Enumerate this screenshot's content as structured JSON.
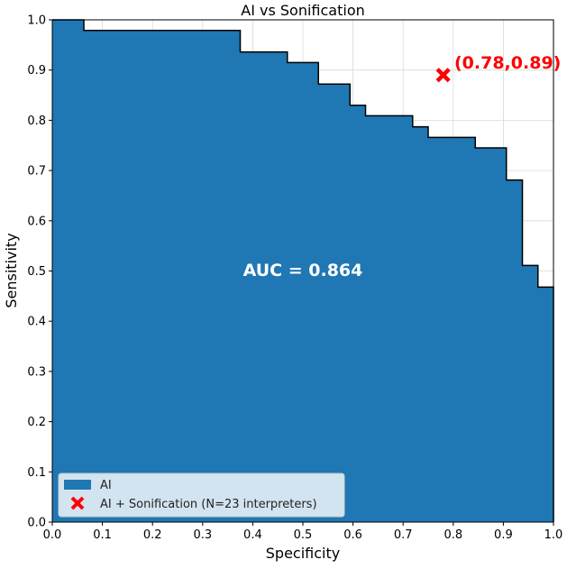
{
  "chart_data": {
    "type": "area",
    "title": "AI vs Sonification",
    "xlabel": "Specificity",
    "ylabel": "Sensitivity",
    "xlim": [
      0.0,
      1.0
    ],
    "ylim": [
      0.0,
      1.0
    ],
    "xticks": [
      "0.0",
      "0.1",
      "0.2",
      "0.3",
      "0.4",
      "0.5",
      "0.6",
      "0.7",
      "0.8",
      "0.9",
      "1.0"
    ],
    "yticks": [
      "0.0",
      "0.1",
      "0.2",
      "0.3",
      "0.4",
      "0.5",
      "0.6",
      "0.7",
      "0.8",
      "0.9",
      "1.0"
    ],
    "grid": true,
    "legend_position": "lower-left",
    "fill_color": "#1f77b4",
    "marker_color": "#ff0000",
    "series": [
      {
        "name": "AI",
        "kind": "step-area",
        "x": [
          0.0,
          0.063,
          0.063,
          0.375,
          0.375,
          0.469,
          0.469,
          0.531,
          0.531,
          0.594,
          0.594,
          0.625,
          0.625,
          0.719,
          0.719,
          0.75,
          0.75,
          0.844,
          0.844,
          0.906,
          0.906,
          0.938,
          0.938,
          0.969,
          0.969,
          1.0
        ],
        "y": [
          1.0,
          1.0,
          0.979,
          0.979,
          0.936,
          0.936,
          0.915,
          0.915,
          0.872,
          0.872,
          0.83,
          0.83,
          0.809,
          0.809,
          0.787,
          0.787,
          0.766,
          0.766,
          0.745,
          0.745,
          0.681,
          0.681,
          0.511,
          0.511,
          0.468,
          0.468
        ]
      },
      {
        "name": "AI + Sonification (N=23 interpreters)",
        "kind": "point",
        "x": 0.78,
        "y": 0.89
      }
    ],
    "annotations": {
      "auc": "AUC = 0.864",
      "point_label": "(0.78,0.89)"
    }
  }
}
